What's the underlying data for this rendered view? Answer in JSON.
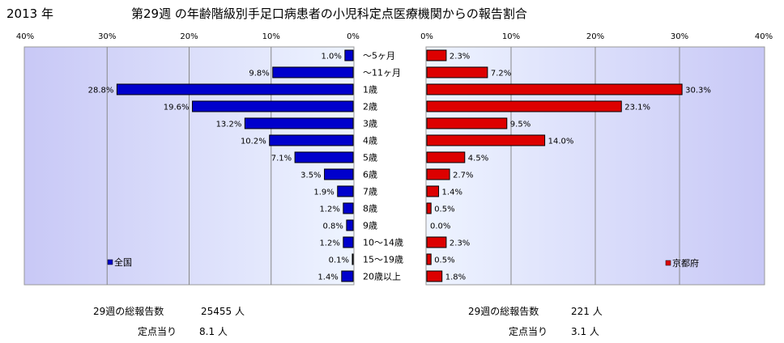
{
  "header": {
    "year": "2013 年",
    "title": "第29週 の年齢階級別手足口病患者の小児科定点医療機関からの報告割合"
  },
  "chart_data": {
    "type": "bar",
    "orientation": "horizontal-butterfly",
    "categories": [
      "～5ヶ月",
      "～11ヶ月",
      "1歳",
      "2歳",
      "3歳",
      "4歳",
      "5歳",
      "6歳",
      "7歳",
      "8歳",
      "9歳",
      "10～14歳",
      "15～19歳",
      "20歳以上"
    ],
    "xlim": [
      0,
      40
    ],
    "ticks": [
      "0%",
      "10%",
      "20%",
      "30%",
      "40%"
    ],
    "grid": true,
    "series": [
      {
        "name": "全国",
        "side": "left",
        "color": "#0000cc",
        "values": [
          1.0,
          9.8,
          28.8,
          19.6,
          13.2,
          10.2,
          7.1,
          3.5,
          1.9,
          1.2,
          0.8,
          1.2,
          0.1,
          1.4
        ],
        "labels": [
          "1.0%",
          "9.8%",
          "28.8%",
          "19.6%",
          "13.2%",
          "10.2%",
          "7.1%",
          "3.5%",
          "1.9%",
          "1.2%",
          "0.8%",
          "1.2%",
          "0.1%",
          "1.4%"
        ],
        "legend_position": "bottom-left"
      },
      {
        "name": "京都府",
        "side": "right",
        "color": "#dd0000",
        "values": [
          2.3,
          7.2,
          30.3,
          23.1,
          9.5,
          14.0,
          4.5,
          2.7,
          1.4,
          0.5,
          0.0,
          2.3,
          0.5,
          1.8
        ],
        "labels": [
          "2.3%",
          "7.2%",
          "30.3%",
          "23.1%",
          "9.5%",
          "14.0%",
          "4.5%",
          "2.7%",
          "1.4%",
          "0.5%",
          "0.0%",
          "2.3%",
          "0.5%",
          "1.8%"
        ],
        "legend_position": "bottom-right"
      }
    ]
  },
  "stats": {
    "left": {
      "total_label": "29週の総報告数",
      "total_value": "25455 人",
      "per_label": "定点当り",
      "per_value": "8.1 人"
    },
    "right": {
      "total_label": "29週の総報告数",
      "total_value": "221 人",
      "per_label": "定点当り",
      "per_value": "3.1 人"
    }
  }
}
